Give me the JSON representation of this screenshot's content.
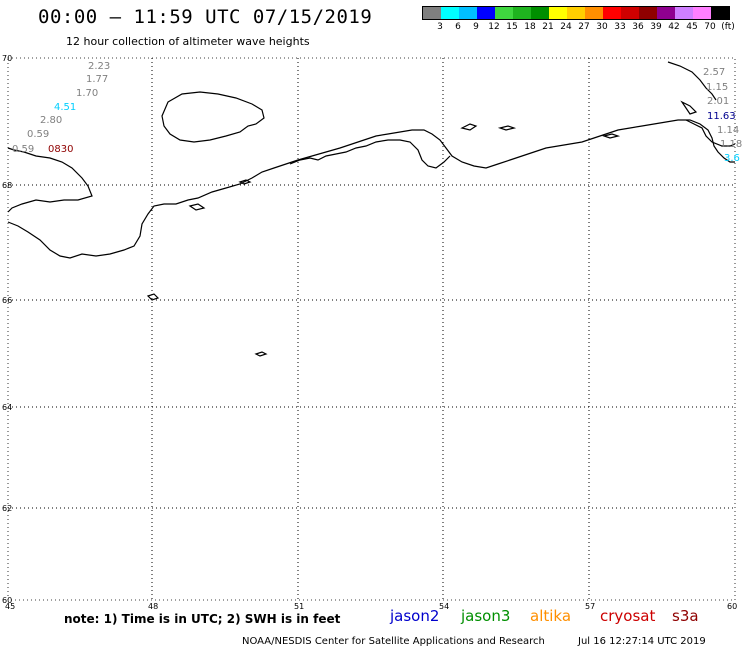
{
  "header": {
    "title": "00:00 – 11:59 UTC 07/15/2019",
    "subtitle": "12 hour collection of altimeter wave heights"
  },
  "legend": {
    "colors": [
      "#7f7f7f",
      "#00ffff",
      "#00bfff",
      "#0000ff",
      "#3fd73f",
      "#1fb41f",
      "#008f00",
      "#ffff00",
      "#ffcf00",
      "#ff8f00",
      "#ff0000",
      "#cf0000",
      "#8f0000",
      "#8f008f",
      "#cf7fff",
      "#ff7fff",
      "#000000"
    ],
    "ticks": [
      "3",
      "6",
      "9",
      "12",
      "15",
      "18",
      "21",
      "24",
      "27",
      "30",
      "33",
      "36",
      "39",
      "42",
      "45",
      "70",
      "(ft)"
    ]
  },
  "axes": {
    "lat_labels": [
      "70",
      "68",
      "66",
      "64",
      "62",
      "60"
    ],
    "lon_labels": [
      "45",
      "48",
      "51",
      "54",
      "57",
      "60"
    ]
  },
  "observations": [
    {
      "text": "2.23",
      "color": "#808080"
    },
    {
      "text": "1.77",
      "color": "#808080"
    },
    {
      "text": "1.70",
      "color": "#808080"
    },
    {
      "text": "4.51",
      "color": "#00cfff"
    },
    {
      "text": "2.80",
      "color": "#808080"
    },
    {
      "text": "0.59",
      "color": "#808080"
    },
    {
      "text": "0.59",
      "color": "#808080"
    },
    {
      "text": "0830",
      "color": "#8f0000"
    },
    {
      "text": "2.57",
      "color": "#808080"
    },
    {
      "text": "1.15",
      "color": "#808080"
    },
    {
      "text": "2.01",
      "color": "#808080"
    },
    {
      "text": "11.63",
      "color": "#00008f"
    },
    {
      "text": "1.14",
      "color": "#808080"
    },
    {
      "text": "1.18",
      "color": "#808080"
    },
    {
      "text": "3.6",
      "color": "#00cfff"
    }
  ],
  "footer": {
    "note": "note: 1) Time is in UTC; 2) SWH is in feet",
    "satellites": [
      {
        "name": "jason2",
        "color": "#0000cc"
      },
      {
        "name": "jason3",
        "color": "#008f00"
      },
      {
        "name": "altika",
        "color": "#ff8f00"
      },
      {
        "name": "cryosat",
        "color": "#cc0000"
      },
      {
        "name": "s3a",
        "color": "#8f0000"
      }
    ],
    "credit": "NOAA/NESDIS Center for Satellite Applications and Research",
    "timestamp": "Jul 16 12:27:14 UTC 2019"
  }
}
